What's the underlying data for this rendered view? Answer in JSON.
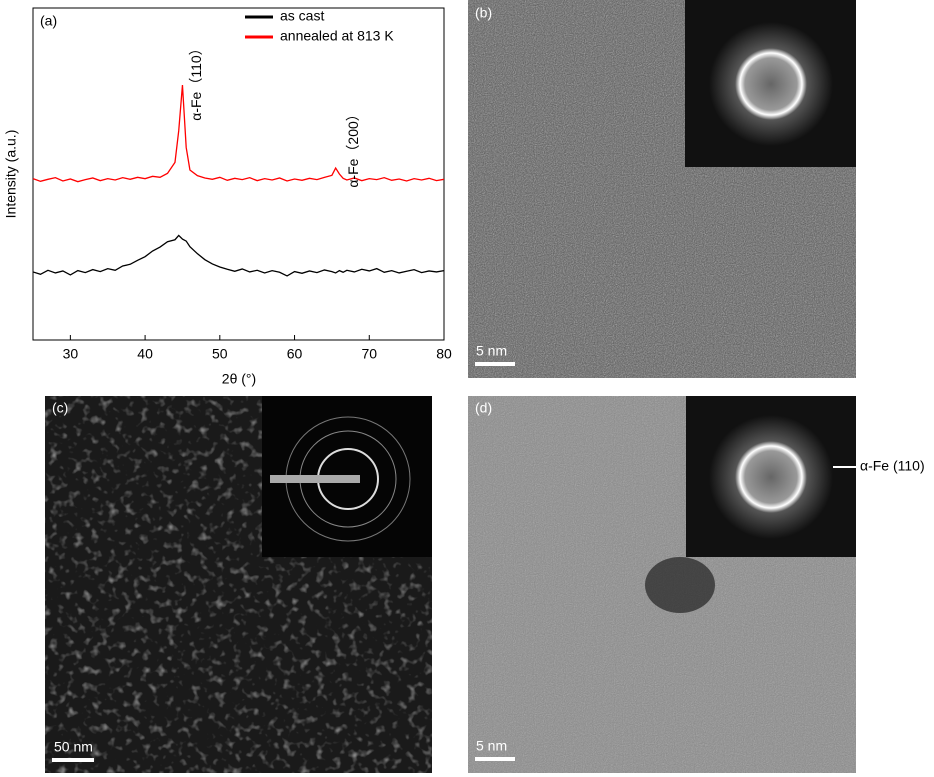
{
  "chart_data": {
    "type": "line",
    "panel_label": "(a)",
    "x_label": "2θ (°)",
    "y_label": "Intensity (a.u.)",
    "x": [
      25,
      26,
      27,
      28,
      29,
      30,
      31,
      32,
      33,
      34,
      35,
      36,
      37,
      38,
      39,
      40,
      41,
      42,
      43,
      44,
      44.5,
      45,
      45.5,
      46,
      47,
      48,
      49,
      50,
      51,
      52,
      53,
      54,
      55,
      56,
      57,
      58,
      59,
      60,
      61,
      62,
      63,
      64,
      65,
      65.5,
      66,
      66.5,
      67,
      68,
      69,
      70,
      71,
      72,
      73,
      74,
      75,
      76,
      77,
      78,
      79,
      80
    ],
    "series": [
      {
        "name": "as cast",
        "color": "#000000",
        "values": [
          20.5,
          19.8,
          21.0,
          20.2,
          20.8,
          19.6,
          20.9,
          20.3,
          21.2,
          20.6,
          21.5,
          21.0,
          22.3,
          22.8,
          24.0,
          25.1,
          26.8,
          28.0,
          29.6,
          30.2,
          31.5,
          30.4,
          29.8,
          28.1,
          26.0,
          24.2,
          22.9,
          22.0,
          21.3,
          20.7,
          21.4,
          20.5,
          21.0,
          20.2,
          20.9,
          20.4,
          19.3,
          20.6,
          20.1,
          20.8,
          20.3,
          21.1,
          20.6,
          20.2,
          20.9,
          20.4,
          21.0,
          20.5,
          21.3,
          20.8,
          21.5,
          20.4,
          20.9,
          20.2,
          20.7,
          21.2,
          20.3,
          20.8,
          20.5,
          20.9
        ]
      },
      {
        "name": "annealed at 813 K",
        "color": "#ff0000",
        "values": [
          48.6,
          47.8,
          48.4,
          48.9,
          47.9,
          48.5,
          47.7,
          48.3,
          48.8,
          48.0,
          48.6,
          48.2,
          48.9,
          48.4,
          49.0,
          48.6,
          49.3,
          49.0,
          50.2,
          53.5,
          63.0,
          76.8,
          58.0,
          51.2,
          49.5,
          48.8,
          48.4,
          49.0,
          48.1,
          48.7,
          48.3,
          48.9,
          48.0,
          48.6,
          48.2,
          48.8,
          47.9,
          48.5,
          48.1,
          48.7,
          48.3,
          49.0,
          49.6,
          51.8,
          50.0,
          48.7,
          48.2,
          48.8,
          48.0,
          48.6,
          48.3,
          48.9,
          48.1,
          48.5,
          47.9,
          48.6,
          48.2,
          48.7,
          48.0,
          48.4
        ]
      }
    ],
    "annotations": [
      {
        "text": "α-Fe（110）",
        "x": 47,
        "y": 78
      },
      {
        "text": "α-Fe（200）",
        "x": 68,
        "y": 58
      }
    ],
    "xlim": [
      25,
      80
    ],
    "xticks": [
      30,
      40,
      50,
      60,
      70,
      80
    ],
    "ylim": [
      0,
      100
    ],
    "legend": "top-right"
  },
  "panels": [
    {
      "label": "(b)",
      "scale_bar": "5 nm"
    },
    {
      "label": "(c)",
      "scale_bar": "50 nm"
    },
    {
      "label": "(d)",
      "scale_bar": "5 nm",
      "annotation": "α-Fe (110)"
    }
  ]
}
